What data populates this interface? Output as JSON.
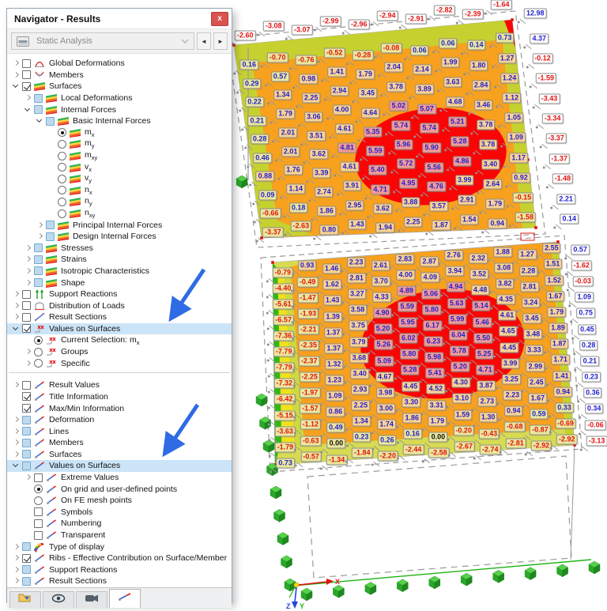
{
  "window": {
    "title": "Navigator - Results",
    "close_glyph": "x"
  },
  "toolbar": {
    "analysis": "Static Analysis",
    "prev_glyph": "◄",
    "next_glyph": "►"
  },
  "tree": {
    "items": [
      {
        "label": "Global Deformations",
        "level": 0,
        "exp": "c",
        "ctl": "cb",
        "state": "off",
        "icon": "global-deformations"
      },
      {
        "label": "Members",
        "level": 0,
        "exp": "c",
        "ctl": "cb",
        "state": "off",
        "icon": "members"
      },
      {
        "label": "Surfaces",
        "level": 0,
        "exp": "e",
        "ctl": "cb",
        "state": "on",
        "icon": "surface-result"
      },
      {
        "label": "Local Deformations",
        "level": 1,
        "exp": "c",
        "ctl": "cb",
        "state": "partial",
        "icon": "surface-result"
      },
      {
        "label": "Internal Forces",
        "level": 1,
        "exp": "e",
        "ctl": "cb",
        "state": "partial",
        "icon": "surface-result"
      },
      {
        "label": "Basic Internal Forces",
        "level": 2,
        "exp": "e",
        "ctl": "cb",
        "state": "partial",
        "icon": "surface-result"
      },
      {
        "label": "m",
        "sub": "x",
        "level": 3,
        "exp": "n",
        "ctl": "rb",
        "state": "on",
        "icon": "surface-result"
      },
      {
        "label": "m",
        "sub": "y",
        "level": 3,
        "exp": "n",
        "ctl": "rb",
        "state": "off",
        "icon": "surface-result"
      },
      {
        "label": "m",
        "sub": "xy",
        "level": 3,
        "exp": "n",
        "ctl": "rb",
        "state": "off",
        "icon": "surface-result"
      },
      {
        "label": "v",
        "sub": "x",
        "level": 3,
        "exp": "n",
        "ctl": "rb",
        "state": "off",
        "icon": "surface-result"
      },
      {
        "label": "v",
        "sub": "y",
        "level": 3,
        "exp": "n",
        "ctl": "rb",
        "state": "off",
        "icon": "surface-result"
      },
      {
        "label": "n",
        "sub": "x",
        "level": 3,
        "exp": "n",
        "ctl": "rb",
        "state": "off",
        "icon": "surface-result"
      },
      {
        "label": "n",
        "sub": "y",
        "level": 3,
        "exp": "n",
        "ctl": "rb",
        "state": "off",
        "icon": "surface-result"
      },
      {
        "label": "n",
        "sub": "xy",
        "level": 3,
        "exp": "n",
        "ctl": "rb",
        "state": "off",
        "icon": "surface-result"
      },
      {
        "label": "Principal Internal Forces",
        "level": 2,
        "exp": "c",
        "ctl": "cb",
        "state": "partial",
        "icon": "surface-result"
      },
      {
        "label": "Design Internal Forces",
        "level": 2,
        "exp": "c",
        "ctl": "cb",
        "state": "partial",
        "icon": "surface-result"
      },
      {
        "label": "Stresses",
        "level": 1,
        "exp": "c",
        "ctl": "cb",
        "state": "partial",
        "icon": "surface-result"
      },
      {
        "label": "Strains",
        "level": 1,
        "exp": "c",
        "ctl": "cb",
        "state": "partial",
        "icon": "surface-result"
      },
      {
        "label": "Isotropic Characteristics",
        "level": 1,
        "exp": "c",
        "ctl": "cb",
        "state": "partial",
        "icon": "surface-result"
      },
      {
        "label": "Shape",
        "level": 1,
        "exp": "c",
        "ctl": "cb",
        "state": "partial",
        "icon": "surface-result"
      },
      {
        "label": "Support Reactions",
        "level": 0,
        "exp": "c",
        "ctl": "cb",
        "state": "off",
        "icon": "support-reactions"
      },
      {
        "label": "Distribution of Loads",
        "level": 0,
        "exp": "c",
        "ctl": "cb",
        "state": "off",
        "icon": "distribution-of-loads"
      },
      {
        "label": "Result Sections",
        "level": 0,
        "exp": "c",
        "ctl": "cb",
        "state": "off",
        "icon": "result-sections"
      },
      {
        "label": "Values on Surfaces",
        "level": 0,
        "exp": "e",
        "ctl": "cb",
        "state": "on",
        "icon": "values-on-surfaces",
        "hl": true
      },
      {
        "label": "Current Selection: m",
        "sub": "x",
        "level": 1,
        "exp": "n",
        "ctl": "rb",
        "state": "on",
        "icon": "values-on-surfaces"
      },
      {
        "label": "Groups",
        "level": 1,
        "exp": "c",
        "ctl": "rb",
        "state": "off",
        "icon": "values-on-surfaces"
      },
      {
        "label": "Specific",
        "level": 1,
        "exp": "c",
        "ctl": "rb",
        "state": "off",
        "icon": "values-on-surfaces"
      },
      {
        "divider": true
      },
      {
        "label": "Result Values",
        "level": 0,
        "exp": "c",
        "ctl": "cb",
        "state": "off",
        "icon": "result-display"
      },
      {
        "label": "Title Information",
        "level": 0,
        "exp": "n",
        "ctl": "cb",
        "state": "on",
        "icon": "result-display"
      },
      {
        "label": "Max/Min Information",
        "level": 0,
        "exp": "n",
        "ctl": "cb",
        "state": "on",
        "icon": "result-display"
      },
      {
        "label": "Deformation",
        "level": 0,
        "exp": "c",
        "ctl": "cb",
        "state": "partial",
        "icon": "result-display"
      },
      {
        "label": "Lines",
        "level": 0,
        "exp": "c",
        "ctl": "cb",
        "state": "partial",
        "icon": "result-display"
      },
      {
        "label": "Members",
        "level": 0,
        "exp": "c",
        "ctl": "cb",
        "state": "partial",
        "icon": "result-display"
      },
      {
        "label": "Surfaces",
        "level": 0,
        "exp": "c",
        "ctl": "cb",
        "state": "partial",
        "icon": "result-display"
      },
      {
        "label": "Values on Surfaces",
        "level": 0,
        "exp": "e",
        "ctl": "cb",
        "state": "partial",
        "icon": "result-display",
        "hl": true
      },
      {
        "label": "Extreme Values",
        "level": 1,
        "exp": "c",
        "ctl": "cb",
        "state": "off",
        "icon": "result-display"
      },
      {
        "label": "On grid and user-defined points",
        "level": 1,
        "exp": "n",
        "ctl": "rb",
        "state": "on",
        "icon": "result-display"
      },
      {
        "label": "On FE mesh points",
        "level": 1,
        "exp": "n",
        "ctl": "rb",
        "state": "off",
        "icon": "result-display"
      },
      {
        "label": "Symbols",
        "level": 1,
        "exp": "n",
        "ctl": "cb",
        "state": "off",
        "icon": "result-display"
      },
      {
        "label": "Numbering",
        "level": 1,
        "exp": "n",
        "ctl": "cb",
        "state": "off",
        "icon": "result-display"
      },
      {
        "label": "Transparent",
        "level": 1,
        "exp": "n",
        "ctl": "cb",
        "state": "off",
        "icon": "result-display"
      },
      {
        "label": "Type of display",
        "level": 0,
        "exp": "c",
        "ctl": "cb",
        "state": "partial",
        "icon": "type-of-display"
      },
      {
        "label": "Ribs - Effective Contribution on Surface/Member",
        "level": 0,
        "exp": "c",
        "ctl": "cb",
        "state": "on",
        "icon": "result-display"
      },
      {
        "label": "Support Reactions",
        "level": 0,
        "exp": "c",
        "ctl": "cb",
        "state": "partial",
        "icon": "result-display"
      },
      {
        "label": "Result Sections",
        "level": 0,
        "exp": "c",
        "ctl": "cb",
        "state": "partial",
        "icon": "result-display"
      }
    ]
  },
  "tabs": {
    "icons": [
      "folder-data-icon",
      "display-eye-icon",
      "camera-icon",
      "results-line-icon"
    ],
    "active_index": 3
  },
  "plot": {
    "axis": {
      "x": "X",
      "y": "Y",
      "z": "Z"
    },
    "surfaces": [
      {
        "name": "upper-surface",
        "top_labels": [
          "-2.60",
          "-3.08",
          "-3.07",
          "-2.99",
          "-2.96",
          "-2.94",
          "-2.91",
          "-2.82",
          "-2.39",
          "-1.64"
        ],
        "rows": [
          [
            "0.16",
            "-0.70",
            "-0.76",
            "-0.52",
            "-0.28",
            "-0.08",
            "0.06",
            "0.06",
            "0.14",
            "0.73"
          ],
          [
            "0.29",
            "0.57",
            "0.98",
            "1.41",
            "1.79",
            "2.04",
            "2.14",
            "1.99",
            "1.80",
            "1.27"
          ],
          [
            "0.22",
            "1.34",
            "2.25",
            "2.94",
            "3.45",
            "3.78",
            "3.89",
            "3.63",
            "2.84",
            "1.24"
          ],
          [
            "0.21",
            "1.79",
            "3.06",
            "4.00",
            "4.64",
            "5.02",
            "5.07",
            "4.68",
            "3.46",
            "1.12"
          ],
          [
            "0.28",
            "2.01",
            "3.51",
            "4.61",
            "5.35",
            "5.74",
            "5.74",
            "5.21",
            "3.78",
            "1.05"
          ],
          [
            "0.46",
            "2.01",
            "3.62",
            "4.81",
            "5.59",
            "5.96",
            "5.90",
            "5.28",
            "3.78",
            "1.09"
          ],
          [
            "0.88",
            "1.76",
            "3.39",
            "4.61",
            "5.40",
            "5.72",
            "5.56",
            "4.86",
            "3.40",
            "1.17"
          ],
          [
            "0.09",
            "1.14",
            "2.74",
            "3.91",
            "4.71",
            "4.95",
            "4.76",
            "3.99",
            "2.64",
            "0.92"
          ],
          [
            "-0.66",
            "0.18",
            "1.86",
            "2.95",
            "3.62",
            "3.88",
            "3.57",
            "2.91",
            "1.79",
            "-0.15"
          ],
          [
            "-3.37",
            "-2.63",
            "0.80",
            "1.43",
            "1.94",
            "2.25",
            "1.87",
            "1.54",
            "0.94",
            "-1.58"
          ]
        ],
        "right_labels": [
          "12.98",
          "4.37",
          "-0.12",
          "-1.59",
          "-3.43",
          "-3.34",
          "-3.37",
          "-1.37",
          "-1.48",
          "2.21",
          "0.14"
        ]
      },
      {
        "name": "lower-surface",
        "rows": [
          [
            "-0.79",
            "0.93",
            "1.46",
            "2.23",
            "2.61",
            "2.83",
            "2.87",
            "2.76",
            "2.32",
            "1.88",
            "1.27",
            "2.55"
          ],
          [
            "-4.40",
            "-0.49",
            "1.62",
            "2.81",
            "3.70",
            "4.00",
            "4.09",
            "3.94",
            "3.52",
            "3.08",
            "2.28",
            "1.51"
          ],
          [
            "-5.61",
            "-1.47",
            "1.43",
            "3.27",
            "4.33",
            "4.89",
            "5.06",
            "4.94",
            "4.48",
            "3.82",
            "2.81",
            "1.52"
          ],
          [
            "-6.57",
            "-1.93",
            "1.39",
            "3.58",
            "4.90",
            "5.59",
            "5.80",
            "5.63",
            "5.14",
            "4.35",
            "3.24",
            "1.67"
          ],
          [
            "-7.36",
            "-2.21",
            "1.37",
            "3.75",
            "5.20",
            "5.95",
            "6.17",
            "5.99",
            "5.46",
            "4.61",
            "3.45",
            "1.79"
          ],
          [
            "-7.79",
            "-2.35",
            "1.37",
            "3.79",
            "5.26",
            "6.02",
            "6.23",
            "6.04",
            "5.50",
            "4.65",
            "3.48",
            "1.89"
          ],
          [
            "-7.79",
            "-2.37",
            "1.32",
            "3.68",
            "5.09",
            "5.80",
            "5.98",
            "5.78",
            "5.25",
            "4.45",
            "3.33",
            "1.87"
          ],
          [
            "-7.32",
            "-2.25",
            "1.23",
            "3.40",
            "4.67",
            "5.28",
            "5.41",
            "5.20",
            "4.71",
            "3.99",
            "2.99",
            "1.71"
          ],
          [
            "-6.42",
            "-1.97",
            "1.09",
            "2.93",
            "3.98",
            "4.45",
            "4.52",
            "4.30",
            "3.87",
            "3.25",
            "2.45",
            "1.41"
          ],
          [
            "-5.15",
            "-1.57",
            "0.86",
            "2.25",
            "3.00",
            "3.30",
            "3.31",
            "3.10",
            "2.73",
            "2.23",
            "1.67",
            "0.94"
          ],
          [
            "-3.63",
            "-1.12",
            "0.49",
            "1.34",
            "1.74",
            "1.86",
            "1.79",
            "1.59",
            "1.30",
            "0.94",
            "0.59",
            "0.33"
          ],
          [
            "-1.79",
            "-0.63",
            "0.00",
            "0.23",
            "0.26",
            "0.16",
            "0.00",
            "-0.20",
            "-0.43",
            "-0.68",
            "-0.87",
            "-0.69"
          ],
          [
            "0.73",
            "-0.57",
            "-1.34",
            "-1.84",
            "-2.20",
            "-2.44",
            "-2.58",
            "-2.67",
            "-2.74",
            "-2.81",
            "-2.92",
            "-2.92"
          ]
        ],
        "right_labels": [
          "0.57",
          "-1.62",
          "-0.03",
          "1.09",
          "0.75",
          "0.45",
          "0.28",
          "0.21",
          "0.23",
          "0.36",
          "0.34",
          "-0.06",
          "-3.13"
        ]
      }
    ]
  }
}
